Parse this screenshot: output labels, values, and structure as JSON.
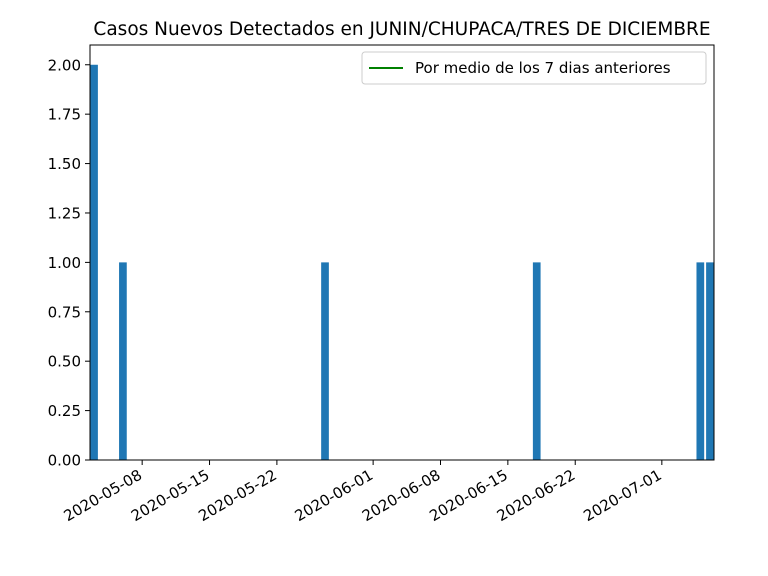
{
  "chart_data": {
    "type": "bar",
    "title": "Casos Nuevos Detectados en JUNIN/CHUPACA/TRES DE DICIEMBRE",
    "xlabel": "",
    "ylabel": "",
    "x_axis_type": "date",
    "xlim": [
      "2020-05-03",
      "2020-07-06"
    ],
    "ylim": [
      0,
      2.1
    ],
    "x_ticks": [
      "2020-05-08",
      "2020-05-15",
      "2020-05-22",
      "2020-06-01",
      "2020-06-08",
      "2020-06-15",
      "2020-06-22",
      "2020-07-01"
    ],
    "y_ticks": [
      "0.00",
      "0.25",
      "0.50",
      "0.75",
      "1.00",
      "1.25",
      "1.50",
      "1.75",
      "2.00"
    ],
    "series": [
      {
        "values": [
          {
            "x": "2020-05-03",
            "y": 2
          },
          {
            "x": "2020-05-06",
            "y": 1
          },
          {
            "x": "2020-05-27",
            "y": 1
          },
          {
            "x": "2020-06-18",
            "y": 1
          },
          {
            "x": "2020-07-05",
            "y": 1
          },
          {
            "x": "2020-07-06",
            "y": 1
          }
        ],
        "color": "#1f77b4"
      },
      {
        "name": "Por medio de los 7 dias anteriores",
        "type": "line",
        "color": "#008000",
        "values": []
      }
    ],
    "legend": {
      "position": "top-right",
      "entries": [
        "Por medio de los 7 dias anteriores"
      ]
    },
    "grid": false
  }
}
